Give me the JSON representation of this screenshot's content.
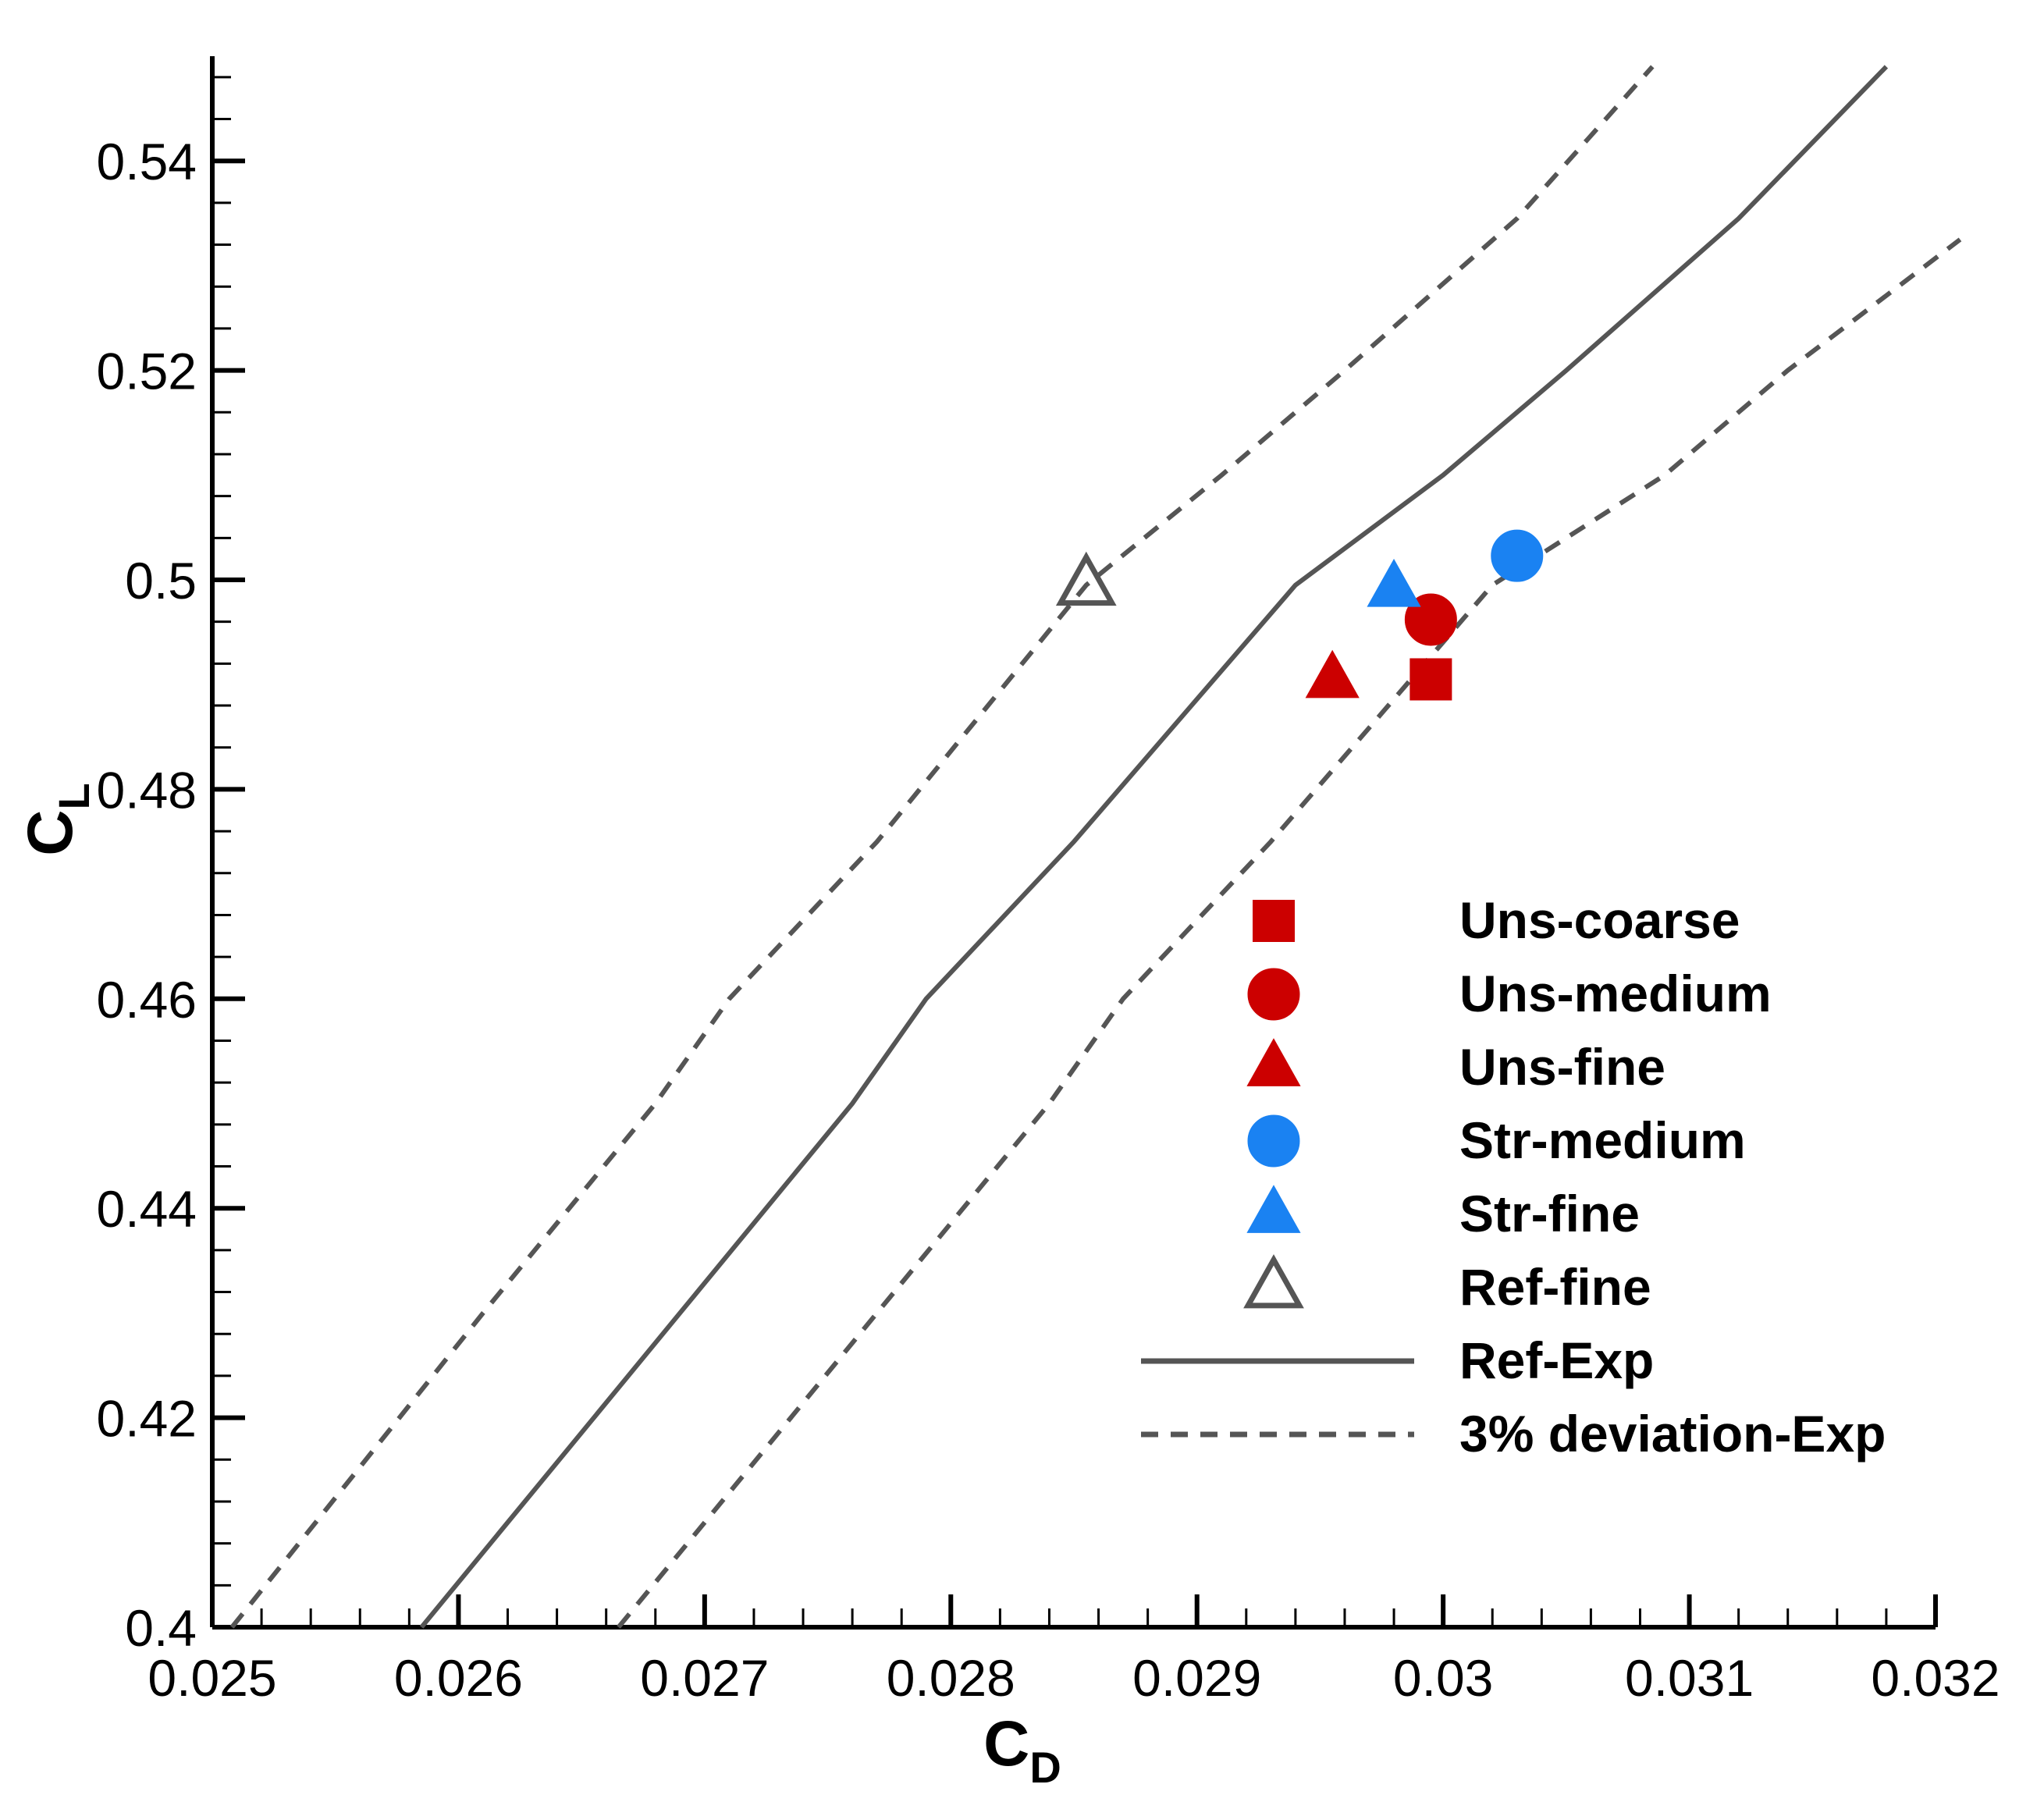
{
  "chart_data": {
    "type": "scatter",
    "xlabel": {
      "main": "C",
      "sub": "D"
    },
    "ylabel": {
      "main": "C",
      "sub": "L"
    },
    "xlim": [
      0.025,
      0.032
    ],
    "ylim": [
      0.4,
      0.55
    ],
    "xticks": [
      "0.025",
      "0.026",
      "0.027",
      "0.028",
      "0.029",
      "0.03",
      "0.031",
      "0.032"
    ],
    "yticks": [
      "0.4",
      "0.42",
      "0.44",
      "0.46",
      "0.48",
      "0.5",
      "0.52",
      "0.54"
    ],
    "grid": false,
    "legend_position": "center-right",
    "series": [
      {
        "name": "Uns-coarse",
        "kind": "point",
        "marker": "square",
        "color": "#cc0000",
        "fill": true,
        "points": [
          [
            0.02995,
            0.4905
          ]
        ]
      },
      {
        "name": "Uns-medium",
        "kind": "point",
        "marker": "circle",
        "color": "#cc0000",
        "fill": true,
        "points": [
          [
            0.02995,
            0.4962
          ]
        ]
      },
      {
        "name": "Uns-fine",
        "kind": "point",
        "marker": "triangle",
        "color": "#cc0000",
        "fill": true,
        "points": [
          [
            0.02955,
            0.4905
          ]
        ]
      },
      {
        "name": "Str-medium",
        "kind": "point",
        "marker": "circle",
        "color": "#1a82f2",
        "fill": true,
        "points": [
          [
            0.0303,
            0.5023
          ]
        ]
      },
      {
        "name": "Str-fine",
        "kind": "point",
        "marker": "triangle",
        "color": "#1a82f2",
        "fill": true,
        "points": [
          [
            0.0298,
            0.4992
          ]
        ]
      },
      {
        "name": "Ref-fine",
        "kind": "point",
        "marker": "triangle",
        "color": "#555555",
        "fill": false,
        "points": [
          [
            0.02855,
            0.4995
          ]
        ]
      },
      {
        "name": "Ref-Exp",
        "kind": "line",
        "style": "solid",
        "color": "#555555",
        "points": [
          [
            0.02585,
            0.4
          ],
          [
            0.0269,
            0.43
          ],
          [
            0.0276,
            0.45
          ],
          [
            0.0279,
            0.46
          ],
          [
            0.0285,
            0.475
          ],
          [
            0.0294,
            0.4995
          ],
          [
            0.03,
            0.51
          ],
          [
            0.0305,
            0.52
          ],
          [
            0.0312,
            0.5345
          ],
          [
            0.0318,
            0.549
          ]
        ]
      },
      {
        "name": "3% deviation-Exp",
        "kind": "line",
        "style": "dashed",
        "color": "#555555",
        "lines": [
          [
            [
              0.02508,
              0.4
            ],
            [
              0.0261,
              0.43
            ],
            [
              0.0268,
              0.45
            ],
            [
              0.0271,
              0.46
            ],
            [
              0.0277,
              0.475
            ],
            [
              0.02855,
              0.4995
            ],
            [
              0.0291,
              0.51
            ],
            [
              0.0296,
              0.52
            ],
            [
              0.0303,
              0.5345
            ],
            [
              0.03085,
              0.549
            ]
          ],
          [
            [
              0.02665,
              0.4
            ],
            [
              0.0277,
              0.43
            ],
            [
              0.0284,
              0.45
            ],
            [
              0.0287,
              0.46
            ],
            [
              0.0293,
              0.475
            ],
            [
              0.0302,
              0.4995
            ],
            [
              0.0309,
              0.51
            ],
            [
              0.0314,
              0.52
            ],
            [
              0.0321,
              0.5325
            ]
          ]
        ]
      }
    ]
  }
}
